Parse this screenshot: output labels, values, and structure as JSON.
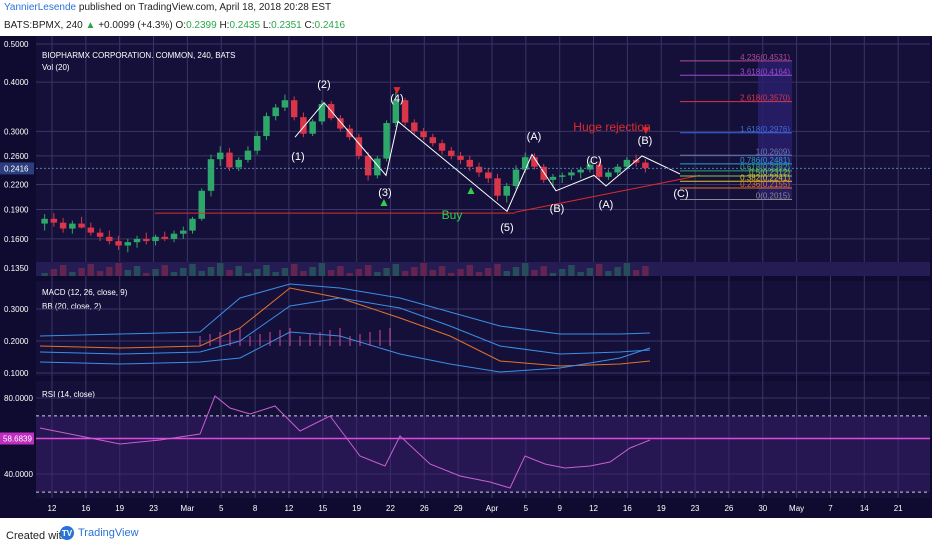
{
  "header": {
    "author": "YannierLesende",
    "published": "published on TradingView.com, April 18, 2018 20:28 EST",
    "symbol": "BATS:BPMX, 240",
    "open_label": "O:",
    "open": "0.2399",
    "change": "+0.0099 (+4.3%)",
    "high_label": "H:",
    "high": "0.2435",
    "low_label": "L:",
    "low": "0.2351",
    "close_label": "C:",
    "close": "0.2416"
  },
  "footer": {
    "created": "Created with",
    "brand": "TradingView"
  },
  "colors": {
    "background": "#15103a",
    "grid": "#3a3565",
    "candle_up": "#2ea86a",
    "candle_down": "#d9364a",
    "wave_line": "#ffffff",
    "annotation_red": "#e02b2b",
    "annotation_green": "#2fcf4f",
    "rsi": "#c85fd2",
    "macd": "#e0722c",
    "bb": "#3b8ee8"
  },
  "chart_data": {
    "type": "candlestick",
    "title": "BIOPHARMX CORPORATION. COMMON, 240, BATS",
    "indicators": [
      "Vol (20)",
      "MACD (12, 26, close, 9)",
      "BB (20, close, 2)",
      "RSI (14, close)"
    ],
    "price_axis_ticks": [
      "0.5000",
      "0.4000",
      "0.3000",
      "0.2600",
      "0.2200",
      "0.1900",
      "0.1600",
      "0.1350"
    ],
    "last_price": "0.2416",
    "macd_axis_ticks": [
      "0.3000",
      "0.2000",
      "0.1000"
    ],
    "rsi_axis_ticks": [
      "80.0000",
      "40.0000"
    ],
    "rsi_value": "58.6839",
    "x_ticks": [
      "12",
      "16",
      "19",
      "23",
      "Mar",
      "5",
      "8",
      "12",
      "15",
      "19",
      "22",
      "26",
      "29",
      "Apr",
      "5",
      "9",
      "12",
      "16",
      "19",
      "23",
      "26",
      "30",
      "May",
      "7",
      "14",
      "21"
    ],
    "candles": [
      [
        0.175,
        0.185,
        0.168,
        0.18
      ],
      [
        0.18,
        0.186,
        0.172,
        0.176
      ],
      [
        0.176,
        0.181,
        0.166,
        0.17
      ],
      [
        0.17,
        0.178,
        0.165,
        0.175
      ],
      [
        0.175,
        0.182,
        0.17,
        0.171
      ],
      [
        0.171,
        0.176,
        0.163,
        0.166
      ],
      [
        0.166,
        0.17,
        0.158,
        0.162
      ],
      [
        0.162,
        0.168,
        0.155,
        0.158
      ],
      [
        0.158,
        0.163,
        0.15,
        0.154
      ],
      [
        0.154,
        0.16,
        0.148,
        0.157
      ],
      [
        0.157,
        0.163,
        0.152,
        0.16
      ],
      [
        0.16,
        0.166,
        0.155,
        0.158
      ],
      [
        0.158,
        0.164,
        0.154,
        0.162
      ],
      [
        0.162,
        0.167,
        0.158,
        0.16
      ],
      [
        0.16,
        0.168,
        0.157,
        0.165
      ],
      [
        0.165,
        0.172,
        0.16,
        0.168
      ],
      [
        0.168,
        0.182,
        0.165,
        0.18
      ],
      [
        0.18,
        0.215,
        0.178,
        0.212
      ],
      [
        0.212,
        0.262,
        0.205,
        0.255
      ],
      [
        0.255,
        0.275,
        0.245,
        0.265
      ],
      [
        0.265,
        0.272,
        0.238,
        0.243
      ],
      [
        0.243,
        0.258,
        0.238,
        0.254
      ],
      [
        0.254,
        0.275,
        0.25,
        0.268
      ],
      [
        0.268,
        0.3,
        0.262,
        0.292
      ],
      [
        0.292,
        0.335,
        0.285,
        0.328
      ],
      [
        0.328,
        0.352,
        0.32,
        0.345
      ],
      [
        0.345,
        0.372,
        0.338,
        0.36
      ],
      [
        0.36,
        0.368,
        0.32,
        0.326
      ],
      [
        0.326,
        0.335,
        0.29,
        0.296
      ],
      [
        0.296,
        0.322,
        0.292,
        0.318
      ],
      [
        0.318,
        0.36,
        0.312,
        0.352
      ],
      [
        0.352,
        0.358,
        0.32,
        0.324
      ],
      [
        0.324,
        0.33,
        0.3,
        0.305
      ],
      [
        0.305,
        0.312,
        0.285,
        0.29
      ],
      [
        0.29,
        0.296,
        0.255,
        0.26
      ],
      [
        0.26,
        0.266,
        0.225,
        0.232
      ],
      [
        0.232,
        0.26,
        0.228,
        0.256
      ],
      [
        0.256,
        0.32,
        0.252,
        0.315
      ],
      [
        0.315,
        0.378,
        0.308,
        0.36
      ],
      [
        0.36,
        0.365,
        0.31,
        0.316
      ],
      [
        0.316,
        0.322,
        0.295,
        0.3
      ],
      [
        0.3,
        0.306,
        0.285,
        0.29
      ],
      [
        0.29,
        0.296,
        0.275,
        0.28
      ],
      [
        0.28,
        0.286,
        0.262,
        0.268
      ],
      [
        0.268,
        0.274,
        0.255,
        0.26
      ],
      [
        0.26,
        0.266,
        0.248,
        0.254
      ],
      [
        0.254,
        0.26,
        0.238,
        0.244
      ],
      [
        0.244,
        0.25,
        0.23,
        0.236
      ],
      [
        0.236,
        0.242,
        0.222,
        0.228
      ],
      [
        0.228,
        0.234,
        0.2,
        0.206
      ],
      [
        0.206,
        0.222,
        0.198,
        0.218
      ],
      [
        0.218,
        0.246,
        0.214,
        0.24
      ],
      [
        0.24,
        0.265,
        0.236,
        0.258
      ],
      [
        0.258,
        0.264,
        0.24,
        0.244
      ],
      [
        0.244,
        0.248,
        0.222,
        0.226
      ],
      [
        0.226,
        0.234,
        0.216,
        0.23
      ],
      [
        0.23,
        0.236,
        0.222,
        0.232
      ],
      [
        0.232,
        0.24,
        0.226,
        0.236
      ],
      [
        0.236,
        0.244,
        0.228,
        0.24
      ],
      [
        0.24,
        0.252,
        0.236,
        0.247
      ],
      [
        0.247,
        0.252,
        0.226,
        0.23
      ],
      [
        0.23,
        0.24,
        0.226,
        0.236
      ],
      [
        0.236,
        0.248,
        0.232,
        0.244
      ],
      [
        0.244,
        0.258,
        0.24,
        0.254
      ],
      [
        0.254,
        0.262,
        0.244,
        0.25
      ],
      [
        0.25,
        0.255,
        0.236,
        0.242
      ]
    ],
    "annotations": [
      {
        "text": "(1)",
        "date": "Mar 8"
      },
      {
        "text": "(2)",
        "date": "Mar 12"
      },
      {
        "text": "(3)",
        "date": "Mar 19"
      },
      {
        "text": "(4)",
        "date": "Mar 20"
      },
      {
        "text": "(5)",
        "date": "Apr 2"
      },
      {
        "text": "(A)",
        "date": "Apr 5"
      },
      {
        "text": "(B)",
        "date": "Apr 9"
      },
      {
        "text": "(C)",
        "date": "Apr 13"
      },
      {
        "text": "(A)",
        "date": "Apr 16"
      },
      {
        "text": "(B)",
        "date": "Apr 19"
      },
      {
        "text": "(C)",
        "date": "Apr 23"
      },
      {
        "text": "Buy",
        "date": "Mar 27"
      },
      {
        "text": "Huge rejection",
        "date": "Apr 12"
      }
    ],
    "fibonacci": [
      {
        "label": "4.236(0.4531)",
        "color": "#b04a9a"
      },
      {
        "label": "3.618(0.4164)",
        "color": "#9b4ad2"
      },
      {
        "label": "2.618(0.3570)",
        "color": "#d9364a"
      },
      {
        "label": "1.618(0.2976)",
        "color": "#3b6ce0"
      },
      {
        "label": "1(0.2609)",
        "color": "#6a7bb0"
      },
      {
        "label": "0.786(0.2481)",
        "color": "#2aa0d0"
      },
      {
        "label": "0.618(0.2382)",
        "color": "#2ea86a"
      },
      {
        "label": "0.5(0.2312)",
        "color": "#8cc63f"
      },
      {
        "label": "0.382(0.2241)",
        "color": "#e0c52c"
      },
      {
        "label": "0.236(0.2155)",
        "color": "#e0722c"
      },
      {
        "label": "0(0.2015)",
        "color": "#8a8a8a"
      }
    ]
  }
}
